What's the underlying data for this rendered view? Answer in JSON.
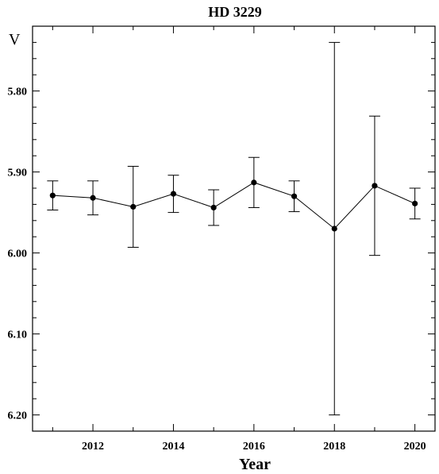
{
  "chart_data": {
    "type": "scatter",
    "title": "HD 3229",
    "xlabel": "Year",
    "ylabel": "V",
    "xlim": [
      2010.5,
      2020.5
    ],
    "ylim": [
      5.72,
      6.22
    ],
    "y_inverted": true,
    "grid": false,
    "x_ticks": [
      2012,
      2014,
      2016,
      2018,
      2020
    ],
    "y_ticks": [
      5.8,
      5.9,
      6.0,
      6.1,
      6.2
    ],
    "y_tick_labels": [
      "5.80",
      "5.90",
      "6.00",
      "6.10",
      "6.20"
    ],
    "series": [
      {
        "x": [
          2011,
          2012,
          2013,
          2014,
          2015,
          2016,
          2017,
          2018,
          2019,
          2020
        ],
        "y": [
          5.929,
          5.932,
          5.943,
          5.927,
          5.944,
          5.913,
          5.93,
          5.97,
          5.917,
          5.939
        ],
        "yerr": [
          0.018,
          0.021,
          0.05,
          0.023,
          0.022,
          0.031,
          0.019,
          0.23,
          0.086,
          0.019
        ]
      }
    ]
  }
}
